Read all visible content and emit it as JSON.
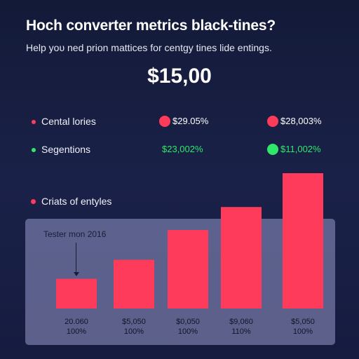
{
  "header": {
    "title": "Hoch converter metrics black-tines?",
    "subtitle": "Help yoυ ned prion mattices for centgy tines lide entings."
  },
  "price": "$15,00",
  "metrics": [
    {
      "label": "Cental lories",
      "value1": "$29.05%",
      "value2": "$28,003%",
      "color": "#ff3b5c",
      "value_color": "#ffffff"
    },
    {
      "label": "Segentions",
      "value1": "$23,002%",
      "value2": "$11,002%",
      "color": "#2ee86a",
      "value_color": "#2ee86a"
    }
  ],
  "chart_section": {
    "label": "Criats of entyles",
    "annotation": "Tester mon 2016",
    "bar_color": "#ff3b5c",
    "panel_color": "#9698c8"
  },
  "chart_data": {
    "type": "bar",
    "categories": [
      "20.060",
      "$5,050",
      "$0,050",
      "$9,060",
      "$5,050"
    ],
    "category_sublabels": [
      "100%",
      "100%",
      "100%",
      "110%",
      "100%"
    ],
    "values": [
      22,
      36,
      58,
      75,
      100
    ],
    "ylim": [
      0,
      100
    ],
    "grid": false,
    "legend": "none"
  }
}
